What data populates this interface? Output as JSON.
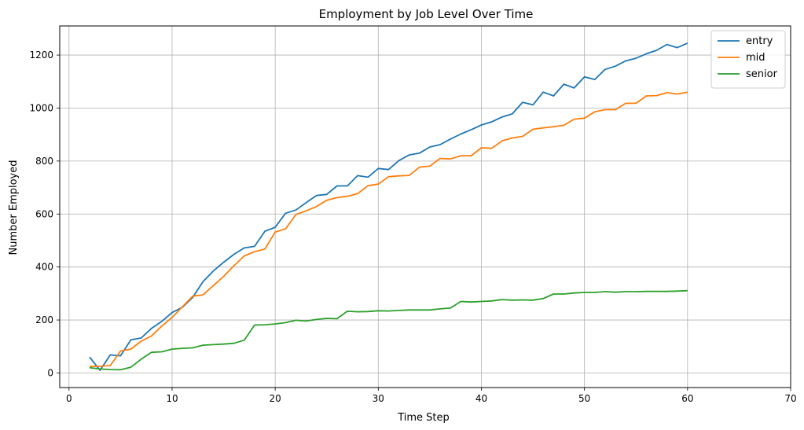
{
  "chart_data": {
    "type": "line",
    "title": "Employment by Job Level Over Time",
    "xlabel": "Time Step",
    "ylabel": "Number Employed",
    "xlim": [
      -0.9,
      70
    ],
    "ylim": [
      -55,
      1310
    ],
    "xticks": [
      0,
      10,
      20,
      30,
      40,
      50,
      60,
      70
    ],
    "yticks": [
      0,
      200,
      400,
      600,
      800,
      1000,
      1200
    ],
    "grid": true,
    "legend_position": "upper right",
    "x": [
      2,
      3,
      4,
      5,
      6,
      7,
      8,
      9,
      10,
      11,
      12,
      13,
      14,
      15,
      16,
      17,
      18,
      19,
      20,
      21,
      22,
      23,
      24,
      25,
      26,
      27,
      28,
      29,
      30,
      31,
      32,
      33,
      34,
      35,
      36,
      37,
      38,
      39,
      40,
      41,
      42,
      43,
      44,
      45,
      46,
      47,
      48,
      49,
      50,
      51,
      52,
      53,
      54,
      55,
      56,
      57,
      58,
      59,
      60
    ],
    "series": [
      {
        "name": "entry",
        "color": "#1f77b4",
        "values": [
          60,
          10,
          68,
          65,
          125,
          132,
          168,
          195,
          228,
          248,
          285,
          345,
          385,
          418,
          448,
          472,
          478,
          535,
          550,
          603,
          615,
          643,
          670,
          674,
          706,
          706,
          745,
          739,
          772,
          768,
          802,
          823,
          830,
          853,
          862,
          883,
          902,
          918,
          936,
          948,
          966,
          978,
          1022,
          1012,
          1060,
          1046,
          1090,
          1076,
          1118,
          1108,
          1146,
          1158,
          1178,
          1188,
          1205,
          1218,
          1240,
          1228,
          1245
        ]
      },
      {
        "name": "mid",
        "color": "#ff7f0e",
        "values": [
          25,
          25,
          28,
          83,
          90,
          120,
          140,
          177,
          210,
          250,
          290,
          295,
          330,
          365,
          405,
          442,
          458,
          468,
          532,
          544,
          598,
          612,
          628,
          652,
          662,
          667,
          677,
          707,
          713,
          741,
          744,
          746,
          777,
          781,
          810,
          808,
          820,
          820,
          850,
          848,
          876,
          887,
          893,
          920,
          925,
          930,
          935,
          958,
          962,
          986,
          994,
          994,
          1018,
          1018,
          1046,
          1047,
          1058,
          1053,
          1060
        ]
      },
      {
        "name": "senior",
        "color": "#2ca02c",
        "values": [
          20,
          15,
          13,
          12,
          22,
          52,
          78,
          80,
          90,
          93,
          95,
          105,
          107,
          109,
          112,
          124,
          181,
          182,
          185,
          190,
          199,
          196,
          202,
          206,
          205,
          233,
          231,
          232,
          235,
          234,
          236,
          238,
          238,
          238,
          242,
          245,
          270,
          268,
          270,
          272,
          277,
          275,
          276,
          275,
          281,
          298,
          298,
          302,
          304,
          304,
          307,
          305,
          307,
          307,
          308,
          308,
          308,
          309,
          311
        ]
      }
    ]
  }
}
